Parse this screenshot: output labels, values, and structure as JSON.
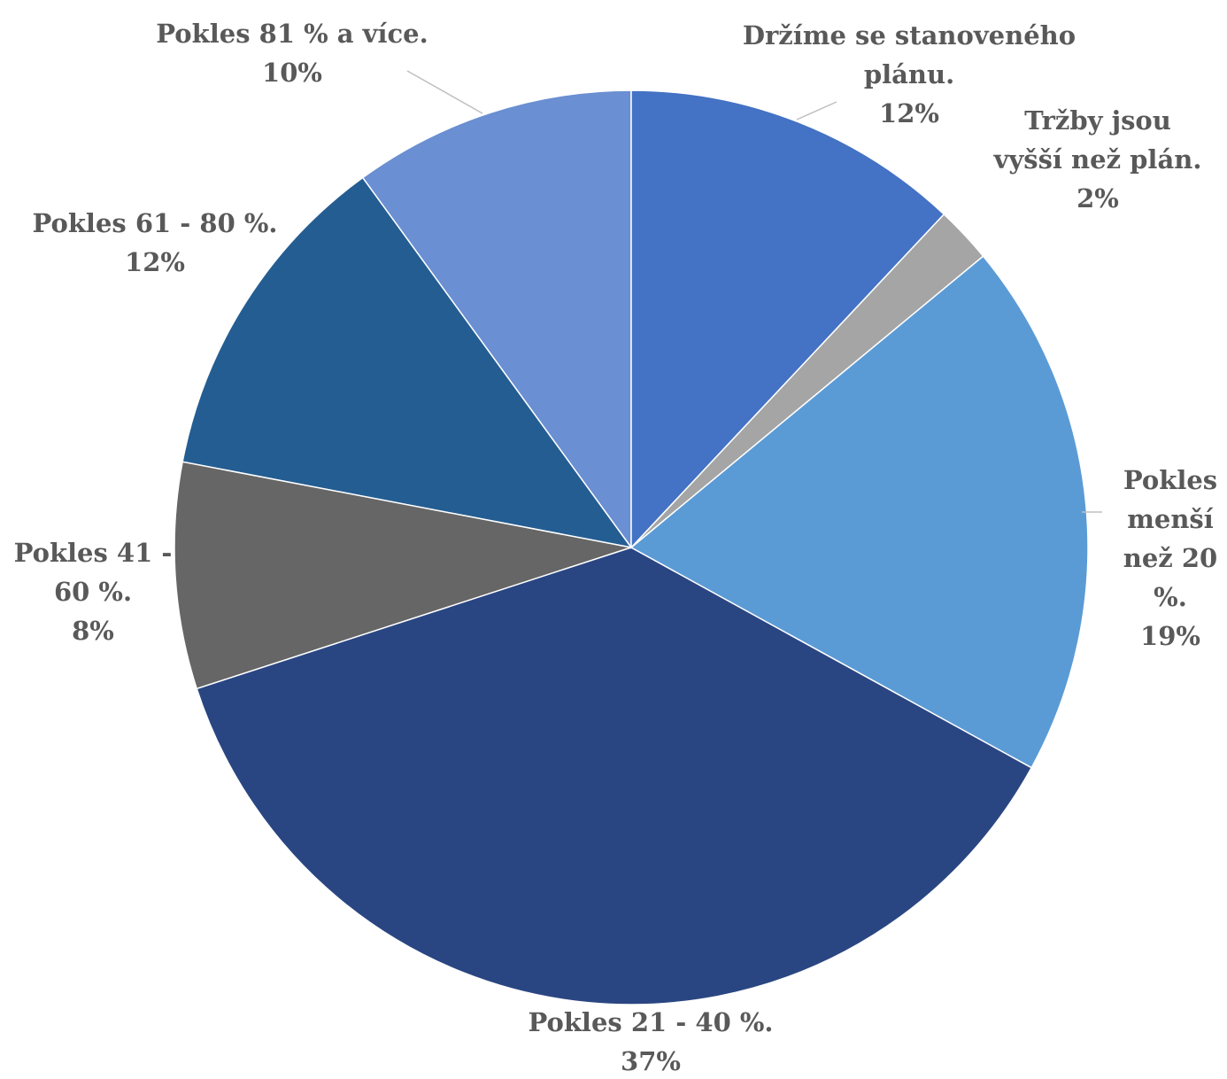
{
  "chart_data": {
    "type": "pie",
    "categories": [
      "Držíme se stanoveného plánu.",
      "Tržby jsou vyšší než plán.",
      "Pokles menší než 20 %.",
      "Pokles 21 - 40 %.",
      "Pokles 41 - 60 %.",
      "Pokles 61 - 80 %.",
      "Pokles 81 % a více."
    ],
    "values": [
      12,
      2,
      19,
      37,
      8,
      12,
      10
    ],
    "value_labels": [
      "12%",
      "2%",
      "19%",
      "37%",
      "8%",
      "12%",
      "10%"
    ],
    "colors": [
      "#4472c4",
      "#a5a5a5",
      "#5b9bd5",
      "#2a4682",
      "#666666",
      "#245d92",
      "#6a8fd2"
    ]
  }
}
